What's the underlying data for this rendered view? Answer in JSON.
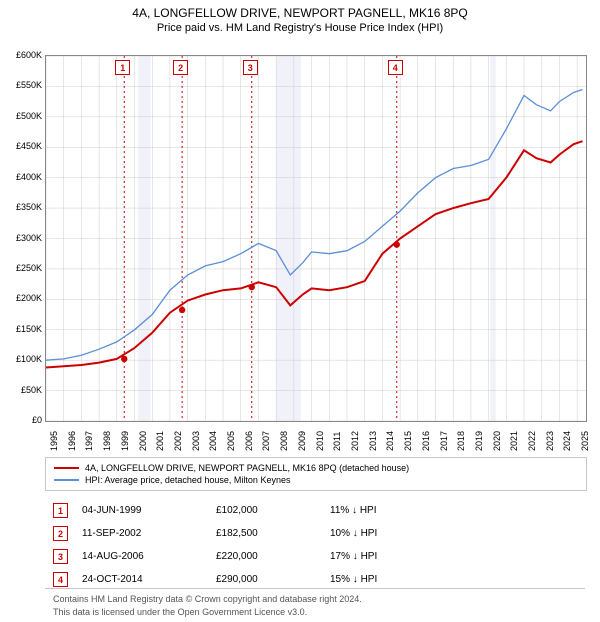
{
  "titles": {
    "line1": "4A, LONGFELLOW DRIVE, NEWPORT PAGNELL, MK16 8PQ",
    "line2": "Price paid vs. HM Land Registry's House Price Index (HPI)"
  },
  "chart": {
    "type": "line",
    "background_color": "#ffffff",
    "plot_border_color": "#888888",
    "grid_color": "#cccccc",
    "xlim": [
      1995,
      2025.5
    ],
    "x_ticks": [
      1995,
      1996,
      1997,
      1998,
      1999,
      2000,
      2001,
      2002,
      2003,
      2004,
      2005,
      2006,
      2007,
      2008,
      2009,
      2010,
      2011,
      2012,
      2013,
      2014,
      2015,
      2016,
      2017,
      2018,
      2019,
      2020,
      2021,
      2022,
      2023,
      2024,
      2025
    ],
    "ylim": [
      0,
      600000
    ],
    "y_ticks": [
      0,
      50000,
      100000,
      150000,
      200000,
      250000,
      300000,
      350000,
      400000,
      450000,
      500000,
      550000,
      600000
    ],
    "y_tick_labels": [
      "£0",
      "£50K",
      "£100K",
      "£150K",
      "£200K",
      "£250K",
      "£300K",
      "£350K",
      "£400K",
      "£450K",
      "£500K",
      "£550K",
      "£600K"
    ],
    "series": [
      {
        "name": "property",
        "label": "4A, LONGFELLOW DRIVE, NEWPORT PAGNELL, MK16 8PQ (detached house)",
        "color": "#cc0000",
        "line_width": 2,
        "x": [
          1995,
          1996,
          1997,
          1998,
          1999,
          2000,
          2001,
          2002,
          2003,
          2004,
          2005,
          2006,
          2007,
          2008,
          2008.8,
          2009.5,
          2010,
          2011,
          2012,
          2013,
          2014,
          2015,
          2016,
          2017,
          2018,
          2019,
          2020,
          2021,
          2022,
          2022.7,
          2023.5,
          2024,
          2024.8,
          2025.3
        ],
        "y": [
          88000,
          90000,
          92000,
          96000,
          102000,
          120000,
          145000,
          178000,
          198000,
          208000,
          215000,
          218000,
          228000,
          220000,
          190000,
          208000,
          218000,
          215000,
          220000,
          230000,
          275000,
          300000,
          320000,
          340000,
          350000,
          358000,
          365000,
          400000,
          445000,
          432000,
          425000,
          438000,
          455000,
          460000
        ]
      },
      {
        "name": "hpi",
        "label": "HPI: Average price, detached house, Milton Keynes",
        "color": "#5b8fd6",
        "line_width": 1.3,
        "x": [
          1995,
          1996,
          1997,
          1998,
          1999,
          2000,
          2001,
          2002,
          2003,
          2004,
          2005,
          2006,
          2007,
          2008,
          2008.8,
          2009.5,
          2010,
          2011,
          2012,
          2013,
          2014,
          2015,
          2016,
          2017,
          2018,
          2019,
          2020,
          2021,
          2022,
          2022.7,
          2023.5,
          2024,
          2024.8,
          2025.3
        ],
        "y": [
          100000,
          102000,
          108000,
          118000,
          130000,
          150000,
          175000,
          215000,
          240000,
          255000,
          262000,
          275000,
          292000,
          280000,
          240000,
          260000,
          278000,
          275000,
          280000,
          295000,
          320000,
          345000,
          375000,
          400000,
          415000,
          420000,
          430000,
          480000,
          535000,
          520000,
          510000,
          525000,
          540000,
          545000
        ]
      }
    ],
    "vertical_lines": {
      "color": "#cc0000",
      "dash": "2,3",
      "width": 1,
      "x": [
        1999.42,
        2002.69,
        2006.62,
        2014.81
      ]
    },
    "shaded_bands": {
      "fill": "#e8e8f5",
      "opacity": 0.6,
      "ranges": [
        [
          2000.2,
          2000.9
        ],
        [
          2008.0,
          2009.4
        ],
        [
          2020.1,
          2020.4
        ]
      ]
    },
    "sale_points": {
      "color": "#cc0000",
      "radius": 3.2,
      "points": [
        {
          "x": 1999.42,
          "y": 102000
        },
        {
          "x": 2002.69,
          "y": 182500
        },
        {
          "x": 2006.62,
          "y": 220000
        },
        {
          "x": 2014.81,
          "y": 290000
        }
      ]
    },
    "marker_labels": [
      "1",
      "2",
      "3",
      "4"
    ]
  },
  "legend": {
    "row1": "4A, LONGFELLOW DRIVE, NEWPORT PAGNELL, MK16 8PQ (detached house)",
    "row2": "HPI: Average price, detached house, Milton Keynes"
  },
  "sales": [
    {
      "n": "1",
      "date": "04-JUN-1999",
      "price": "£102,000",
      "delta": "11% ↓ HPI"
    },
    {
      "n": "2",
      "date": "11-SEP-2002",
      "price": "£182,500",
      "delta": "10% ↓ HPI"
    },
    {
      "n": "3",
      "date": "14-AUG-2006",
      "price": "£220,000",
      "delta": "17% ↓ HPI"
    },
    {
      "n": "4",
      "date": "24-OCT-2014",
      "price": "£290,000",
      "delta": "15% ↓ HPI"
    }
  ],
  "footer": {
    "line1": "Contains HM Land Registry data © Crown copyright and database right 2024.",
    "line2": "This data is licensed under the Open Government Licence v3.0."
  }
}
